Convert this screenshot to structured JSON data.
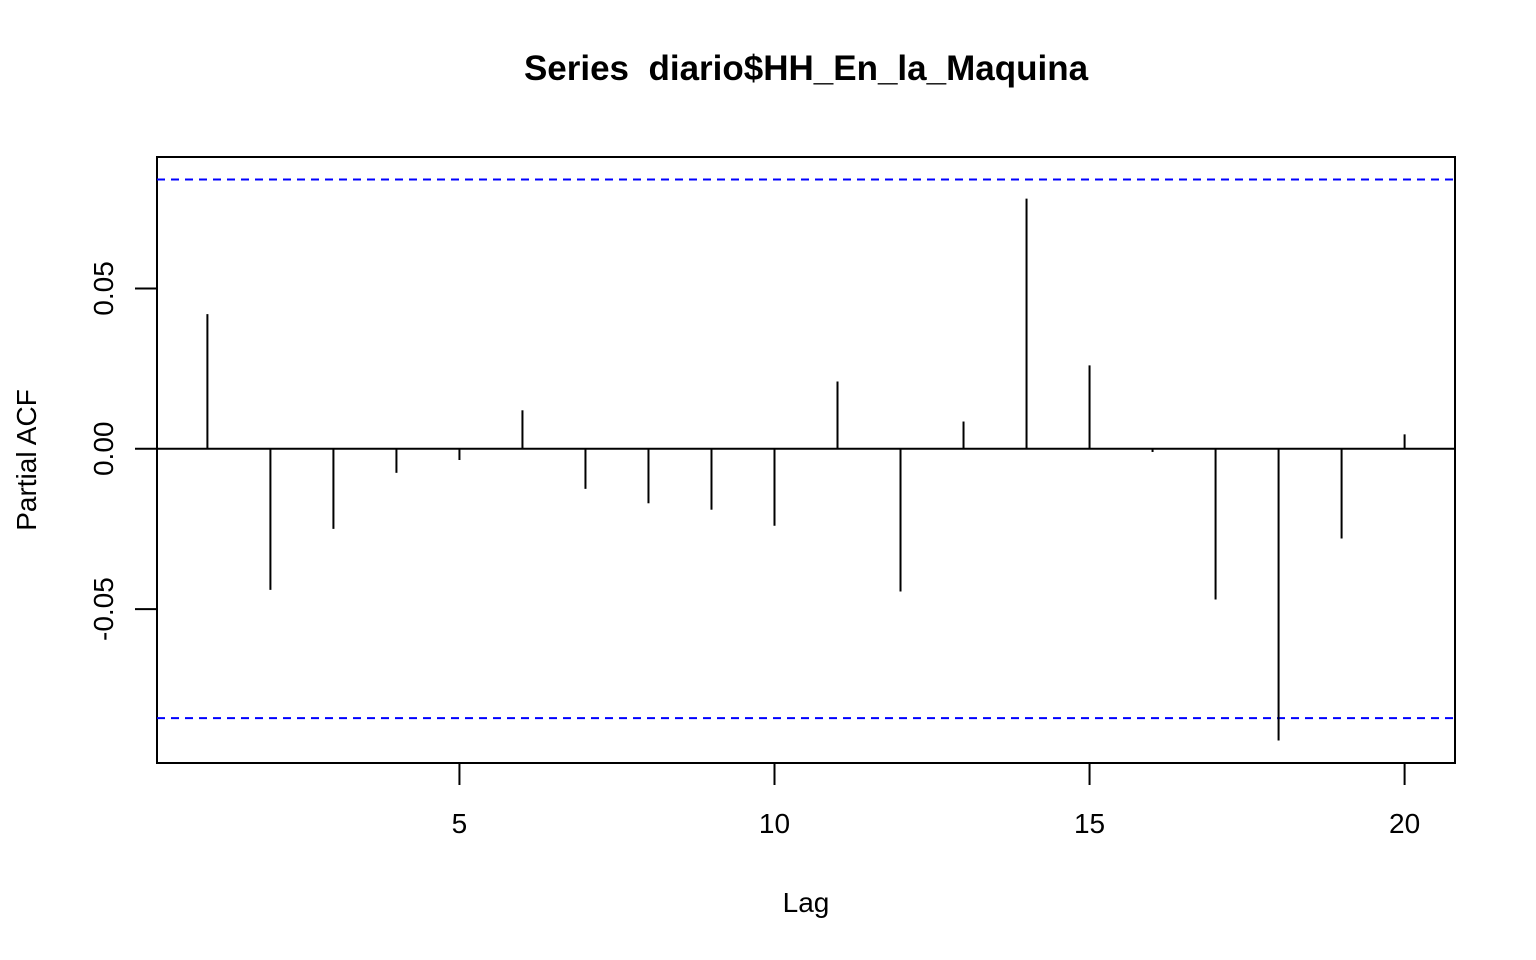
{
  "chart_data": {
    "type": "bar",
    "title": "Series  diario$HH_En_la_Maquina",
    "xlabel": "Lag",
    "ylabel": "Partial ACF",
    "x": [
      1,
      2,
      3,
      4,
      5,
      6,
      7,
      8,
      9,
      10,
      11,
      12,
      13,
      14,
      15,
      16,
      17,
      18,
      19,
      20
    ],
    "values": [
      0.042,
      -0.044,
      -0.025,
      -0.0075,
      -0.0035,
      0.012,
      -0.0125,
      -0.017,
      -0.019,
      -0.024,
      0.021,
      -0.0445,
      0.0085,
      0.078,
      0.026,
      -0.001,
      -0.047,
      -0.091,
      -0.028,
      0.0045
    ],
    "confidence_limits": [
      0.084,
      -0.084
    ],
    "xticks": [
      "5",
      "10",
      "15",
      "20"
    ],
    "yticks": [
      "-0.05",
      "0.00",
      "0.05"
    ],
    "xlim": [
      0.2,
      20.8
    ],
    "ylim": [
      -0.098,
      0.091
    ],
    "grid": false,
    "colors": {
      "spike": "#000000",
      "confidence_line": "#0000ff",
      "axis": "#000000"
    }
  }
}
